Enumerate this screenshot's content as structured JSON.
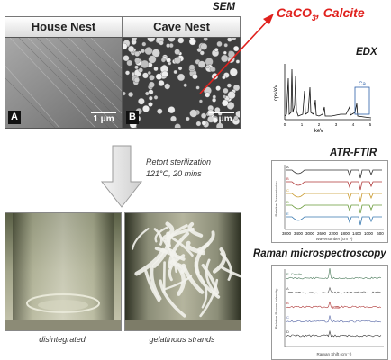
{
  "sem": {
    "title": "SEM",
    "house_label": "House Nest",
    "cave_label": "Cave Nest",
    "letter_a": "A",
    "letter_b": "B",
    "scale_a": "1 μm",
    "scale_b": "1 μm"
  },
  "mineral": {
    "formula": "CaCO",
    "subscript": "3",
    "rest": ", Calcite",
    "color": "#e0211d"
  },
  "edx": {
    "title": "EDX",
    "ylabel": "cps/eV",
    "xlabel": "keV",
    "peak_label": "Ca",
    "ticks": [
      "0",
      "1",
      "2",
      "3",
      "4",
      "5"
    ]
  },
  "process": {
    "line1": "Retort sterilization",
    "line2": "121°C, 20 mins"
  },
  "photos": {
    "left_caption": "disintegrated",
    "right_caption": "gelatinous strands"
  },
  "ftir": {
    "title": "ATR-FTIR",
    "ylabel": "Relative Transmission",
    "xlabel": "Wavenumber (cm⁻¹)",
    "series_labels": [
      "A",
      "B",
      "C",
      "D",
      "E"
    ],
    "ticks": [
      "3800",
      "3400",
      "3000",
      "2600",
      "2200",
      "1800",
      "1400",
      "1000",
      "600"
    ]
  },
  "raman": {
    "title": "Raman microspectroscopy",
    "ylabel": "Relative Raman Intensity",
    "xlabel": "Raman Shift (cm⁻¹)",
    "series_labels": [
      "E. Calcite",
      "A",
      "B",
      "C",
      "D"
    ],
    "peak_note": "1086"
  },
  "colors": {
    "arrow_red": "#e0211d",
    "spectrum_blue": "#2b5fa8"
  }
}
